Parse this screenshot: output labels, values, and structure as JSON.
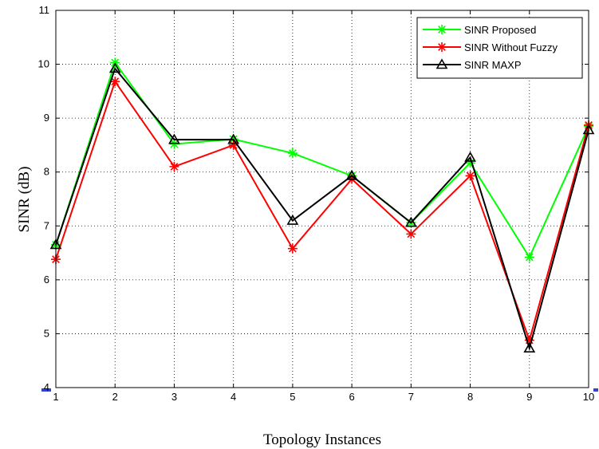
{
  "chart_data": {
    "type": "line",
    "title": "",
    "xlabel": "Topology Instances",
    "ylabel": "SINR (dB)",
    "x": [
      1,
      2,
      3,
      4,
      5,
      6,
      7,
      8,
      9,
      10
    ],
    "xlim": [
      1,
      10
    ],
    "ylim": [
      4,
      11
    ],
    "xticks": [
      "1",
      "2",
      "3",
      "4",
      "5",
      "6",
      "7",
      "8",
      "9",
      "10"
    ],
    "yticks": [
      "4",
      "5",
      "6",
      "7",
      "8",
      "9",
      "10",
      "11"
    ],
    "grid": true,
    "legend_position": "top-right",
    "series": [
      {
        "name": "SINR Proposed",
        "color": "#00ff00",
        "marker": "asterisk",
        "values": [
          6.65,
          10.03,
          8.52,
          8.61,
          8.35,
          7.93,
          7.06,
          8.17,
          6.42,
          8.85
        ]
      },
      {
        "name": "SINR Without Fuzzy",
        "color": "#ff0000",
        "marker": "asterisk",
        "values": [
          6.38,
          9.68,
          8.1,
          8.5,
          6.58,
          7.87,
          6.85,
          7.93,
          4.88,
          8.87
        ]
      },
      {
        "name": "SINR MAXP",
        "color": "#000000",
        "marker": "triangle",
        "values": [
          6.65,
          9.92,
          8.6,
          8.6,
          7.1,
          7.93,
          7.06,
          8.27,
          4.73,
          8.78
        ]
      }
    ]
  }
}
